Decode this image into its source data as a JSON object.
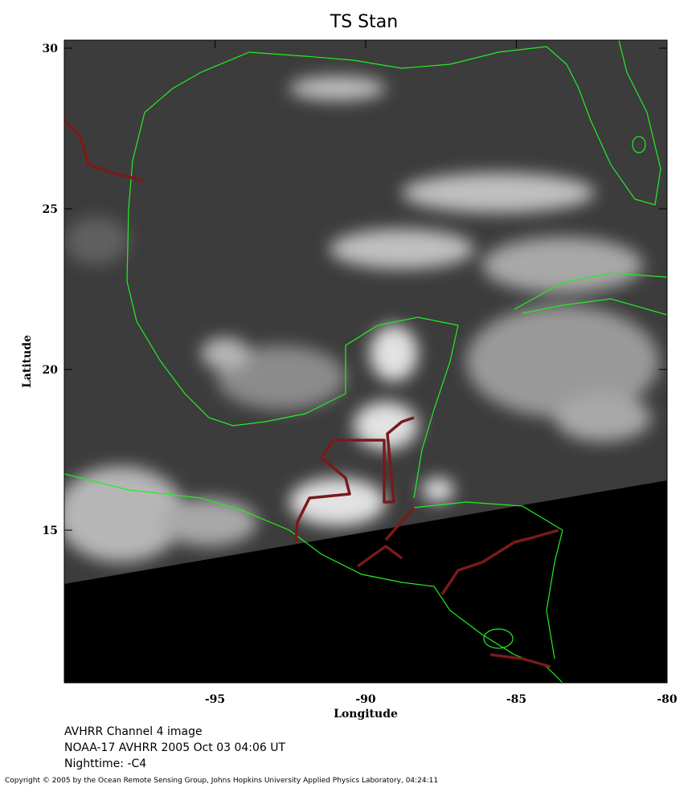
{
  "map": {
    "title": "TS Stan",
    "xlabel": "Longitude",
    "ylabel": "Latitude",
    "xlim": [
      -100,
      -80
    ],
    "ylim": [
      10.25,
      30.25
    ],
    "xticks": [
      -95,
      -90,
      -85,
      -80
    ],
    "yticks": [
      15,
      20,
      25,
      30
    ]
  },
  "caption": [
    "AVHRR Channel 4 image",
    "NOAA-17 AVHRR 2005 Oct 03 04:06 UT",
    "Nighttime: -C4"
  ],
  "copyright": "Copyright © 2005 by the Ocean Remote Sensing Group, Johns Hopkins University Applied Physics Laboratory, 04:24:11"
}
